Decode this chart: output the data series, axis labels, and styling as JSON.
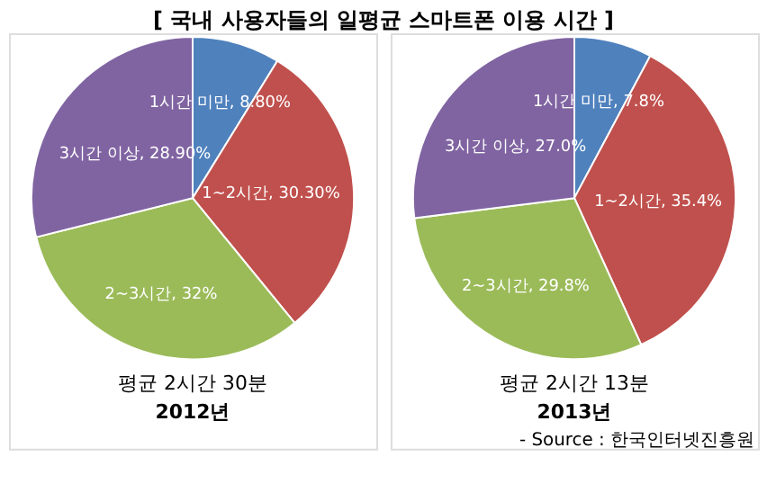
{
  "chart_data": [
    {
      "type": "pie",
      "title": "[ 국내 사용자들의 일평균 스마트폰 이용 시간 ]",
      "subtitle": "평균 2시간 30분",
      "xlabel": "2012년",
      "categories": [
        "1시간 미만",
        "1~2시간",
        "2~3시간",
        "3시간 이상"
      ],
      "values": [
        8.8,
        30.3,
        32,
        28.9
      ],
      "value_labels": [
        "8.80%",
        "30.30%",
        "32%",
        "28.90%"
      ],
      "colors": [
        "#4f81bd",
        "#c0504d",
        "#9bbb59",
        "#8064a2"
      ]
    },
    {
      "type": "pie",
      "subtitle": "평균 2시간 13분",
      "xlabel": "2013년",
      "categories": [
        "1시간 미만",
        "1~2시간",
        "2~3시간",
        "3시간 이상"
      ],
      "values": [
        7.8,
        35.4,
        29.8,
        27.0
      ],
      "value_labels": [
        "7.8%",
        "35.4%",
        "29.8%",
        "27.0%"
      ],
      "colors": [
        "#4f81bd",
        "#c0504d",
        "#9bbb59",
        "#8064a2"
      ],
      "annotations": [
        "- Source : 한국인터넷진흥원"
      ]
    }
  ]
}
